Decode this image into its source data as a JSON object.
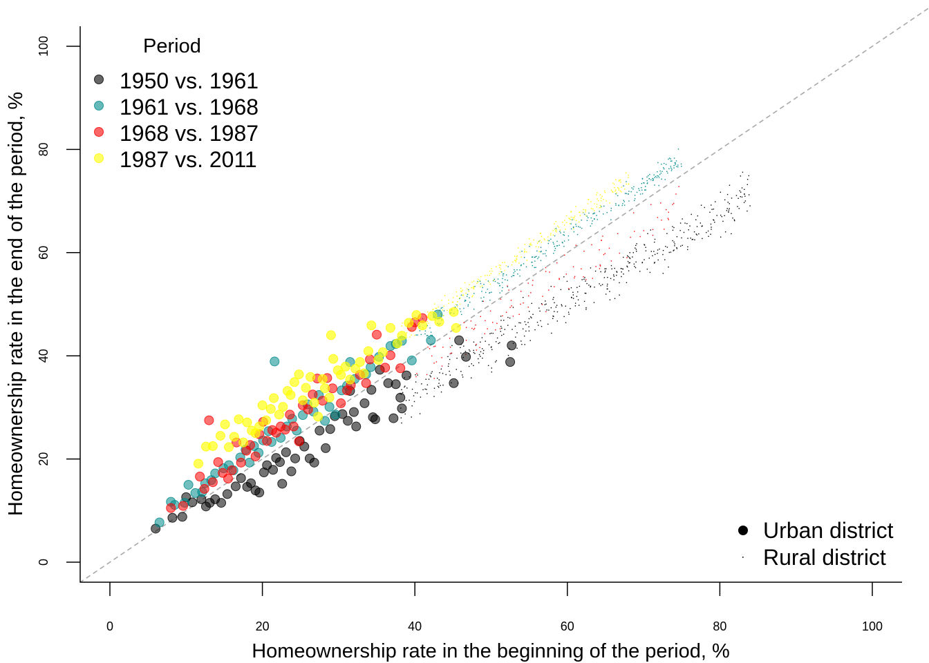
{
  "chart_data": {
    "type": "scatter",
    "xlabel": "Homeownership rate in the beginning of the period, %",
    "ylabel": "Homeownership rate in the end of the period, %",
    "xlim": [
      0,
      100
    ],
    "ylim": [
      0,
      100
    ],
    "xticks": [
      "0",
      "20",
      "40",
      "60",
      "80",
      "100"
    ],
    "yticks": [
      "0",
      "20",
      "40",
      "60",
      "80",
      "100"
    ],
    "reference_line": "y = x (dashed grey)",
    "legend_period": {
      "title": "Period",
      "placement": "top-left",
      "entries": [
        {
          "label": "1950 vs. 1961",
          "color": "#000000"
        },
        {
          "label": "1961 vs. 1968",
          "color": "#008B8B"
        },
        {
          "label": "1968 vs. 1987",
          "color": "#FF0000"
        },
        {
          "label": "1987 vs. 2011",
          "color": "#FFFF00"
        }
      ]
    },
    "legend_district": {
      "placement": "bottom-right",
      "entries": [
        {
          "label": "Urban district",
          "marker": "large-dot"
        },
        {
          "label": "Rural district",
          "marker": "tiny-dot"
        }
      ]
    },
    "series": [
      {
        "name": "1950 vs. 1961",
        "color": "#000000",
        "district": "urban",
        "points": [
          [
            6,
            6.5
          ],
          [
            8.2,
            8.6
          ],
          [
            9.5,
            8.8
          ],
          [
            10,
            12.6
          ],
          [
            10.8,
            11.6
          ],
          [
            12,
            12.2
          ],
          [
            12.6,
            10.8
          ],
          [
            13.1,
            11.5
          ],
          [
            13.8,
            12.2
          ],
          [
            14.6,
            11.5
          ],
          [
            15.4,
            13.2
          ],
          [
            16.5,
            14.7
          ],
          [
            17.2,
            16.3
          ],
          [
            18,
            14.6
          ],
          [
            18.5,
            15.3
          ],
          [
            19.1,
            13.9
          ],
          [
            19.6,
            13.5
          ],
          [
            20.2,
            17.4
          ],
          [
            20.6,
            18.8
          ],
          [
            21.4,
            17.9
          ],
          [
            21.8,
            20.2
          ],
          [
            22.3,
            19.4
          ],
          [
            22.6,
            15.2
          ],
          [
            23.1,
            21.3
          ],
          [
            23.8,
            17.6
          ],
          [
            24.3,
            20.1
          ],
          [
            24.9,
            23.5
          ],
          [
            25.5,
            22.4
          ],
          [
            26.2,
            20.1
          ],
          [
            26.8,
            19.3
          ],
          [
            27.5,
            25.5
          ],
          [
            28.3,
            22.1
          ],
          [
            28.9,
            25.8
          ],
          [
            29.5,
            28.3
          ],
          [
            30.5,
            28.7
          ],
          [
            31.2,
            27.4
          ],
          [
            31.5,
            33.2
          ],
          [
            32,
            29.1
          ],
          [
            32.3,
            26.3
          ],
          [
            33.4,
            30.8
          ],
          [
            34.3,
            33.4
          ],
          [
            34.5,
            28.1
          ],
          [
            34.8,
            27.7
          ],
          [
            35.4,
            37.3
          ],
          [
            36.5,
            34.7
          ],
          [
            37.2,
            27.9
          ],
          [
            37.5,
            34.5
          ],
          [
            38.1,
            31.9
          ],
          [
            38.3,
            29.8
          ],
          [
            38.9,
            36.2
          ],
          [
            45.1,
            34.7
          ],
          [
            45.8,
            43
          ],
          [
            46.7,
            39.8
          ],
          [
            52.5,
            38.8
          ],
          [
            52.7,
            42
          ]
        ]
      },
      {
        "name": "1961 vs. 1968",
        "color": "#008B8B",
        "district": "urban",
        "points": [
          [
            6.5,
            7.7
          ],
          [
            8,
            11.7
          ],
          [
            8.5,
            11.1
          ],
          [
            9.8,
            11.5
          ],
          [
            10.3,
            15
          ],
          [
            11.2,
            13.4
          ],
          [
            12.1,
            13.6
          ],
          [
            12.5,
            15.3
          ],
          [
            13.3,
            15.9
          ],
          [
            13.8,
            17.2
          ],
          [
            14.9,
            18.2
          ],
          [
            15.6,
            18.8
          ],
          [
            16.2,
            17.8
          ],
          [
            17.1,
            20.3
          ],
          [
            17.8,
            21.8
          ],
          [
            18.3,
            19.3
          ],
          [
            18.9,
            22.5
          ],
          [
            19.5,
            21.2
          ],
          [
            20.1,
            23.6
          ],
          [
            20.8,
            25.4
          ],
          [
            21.2,
            23.3
          ],
          [
            21.6,
            38.9
          ],
          [
            22.4,
            24.1
          ],
          [
            23.2,
            26.3
          ],
          [
            23.9,
            27.8
          ],
          [
            24.5,
            25.5
          ],
          [
            25.3,
            28.5
          ],
          [
            25.9,
            30.6
          ],
          [
            26.7,
            29.2
          ],
          [
            27.4,
            32.4
          ],
          [
            28.2,
            27.4
          ],
          [
            28.8,
            30.1
          ],
          [
            29.6,
            28.6
          ],
          [
            30.4,
            33.3
          ],
          [
            31.1,
            34.2
          ],
          [
            31.5,
            38.8
          ],
          [
            32.1,
            35.5
          ],
          [
            33.6,
            36.4
          ],
          [
            34.2,
            37.8
          ],
          [
            35.3,
            39.8
          ],
          [
            36.8,
            41.9
          ],
          [
            37.5,
            42.3
          ],
          [
            38.3,
            42.9
          ],
          [
            39.6,
            39.1
          ],
          [
            42.1,
            43
          ],
          [
            43,
            48
          ]
        ]
      },
      {
        "name": "1968 vs. 1987",
        "color": "#FF0000",
        "district": "urban",
        "points": [
          [
            8,
            10.5
          ],
          [
            9.6,
            10.9
          ],
          [
            11.8,
            16.6
          ],
          [
            12.4,
            14.2
          ],
          [
            13,
            27.5
          ],
          [
            13.5,
            15.5
          ],
          [
            14.2,
            19.4
          ],
          [
            14.8,
            17.3
          ],
          [
            15.5,
            16.2
          ],
          [
            16,
            17.8
          ],
          [
            16.6,
            23.2
          ],
          [
            17.2,
            19.3
          ],
          [
            17.9,
            21.6
          ],
          [
            18.4,
            22.7
          ],
          [
            19.1,
            20.5
          ],
          [
            19.6,
            24.8
          ],
          [
            20.1,
            27.2
          ],
          [
            20.6,
            23.5
          ],
          [
            21.3,
            25.6
          ],
          [
            21.8,
            25.1
          ],
          [
            22.4,
            26.3
          ],
          [
            23,
            25.7
          ],
          [
            23.6,
            28.6
          ],
          [
            24.1,
            26.3
          ],
          [
            24.8,
            23.4
          ],
          [
            25.3,
            30.4
          ],
          [
            26,
            29.6
          ],
          [
            26.6,
            32.5
          ],
          [
            27.2,
            35.6
          ],
          [
            27.9,
            31.3
          ],
          [
            28.5,
            35.7
          ],
          [
            29.2,
            33.7
          ],
          [
            30.3,
            30.8
          ],
          [
            31.1,
            33.3
          ],
          [
            31.6,
            34.3
          ],
          [
            32.8,
            36.3
          ],
          [
            33.6,
            34.7
          ],
          [
            34.1,
            39.3
          ],
          [
            35,
            44.1
          ],
          [
            36.1,
            37.7
          ],
          [
            36.8,
            40.1
          ],
          [
            38.1,
            37.6
          ],
          [
            39.6,
            45.6
          ],
          [
            40,
            46.5
          ],
          [
            41,
            47.3
          ]
        ]
      },
      {
        "name": "1987 vs. 2011",
        "color": "#FFFF00",
        "district": "urban",
        "points": [
          [
            11.6,
            19.1
          ],
          [
            12.6,
            22.4
          ],
          [
            13.5,
            22.5
          ],
          [
            14.5,
            24.5
          ],
          [
            15.1,
            26.7
          ],
          [
            15.6,
            22.3
          ],
          [
            16.3,
            24.3
          ],
          [
            16.9,
            27.7
          ],
          [
            17.5,
            23.2
          ],
          [
            18,
            27.1
          ],
          [
            18.6,
            25.5
          ],
          [
            19.1,
            25
          ],
          [
            19.6,
            26.3
          ],
          [
            20,
            30.4
          ],
          [
            20.5,
            27.5
          ],
          [
            21.1,
            29.7
          ],
          [
            21.5,
            31.8
          ],
          [
            22.2,
            28.6
          ],
          [
            22.7,
            30.1
          ],
          [
            23.3,
            33.2
          ],
          [
            23.7,
            32.4
          ],
          [
            24.2,
            34.9
          ],
          [
            24.8,
            36.4
          ],
          [
            25.3,
            31.4
          ],
          [
            25.7,
            33.8
          ],
          [
            26.3,
            35.9
          ],
          [
            26.8,
            30.9
          ],
          [
            27.3,
            28.2
          ],
          [
            27.9,
            35.5
          ],
          [
            28.2,
            33.7
          ],
          [
            28.8,
            31.9
          ],
          [
            29.3,
            39.4
          ],
          [
            29.9,
            37.2
          ],
          [
            30.3,
            36.3
          ],
          [
            30.9,
            37.9
          ],
          [
            31.5,
            35.4
          ],
          [
            32.2,
            37.5
          ],
          [
            32.8,
            38.8
          ],
          [
            33.3,
            36.6
          ],
          [
            33.9,
            40.9
          ],
          [
            34.3,
            45.9
          ],
          [
            35.2,
            39.2
          ],
          [
            35.8,
            40.7
          ],
          [
            36.8,
            45.4
          ],
          [
            37.7,
            42.4
          ],
          [
            38.3,
            43.9
          ],
          [
            39.2,
            46.4
          ],
          [
            40.2,
            47.9
          ],
          [
            41,
            45.9
          ],
          [
            42.3,
            47.7
          ],
          [
            43.2,
            46.6
          ],
          [
            45.1,
            48.5
          ],
          [
            45.4,
            45.4
          ],
          [
            29,
            44
          ]
        ]
      }
    ]
  }
}
